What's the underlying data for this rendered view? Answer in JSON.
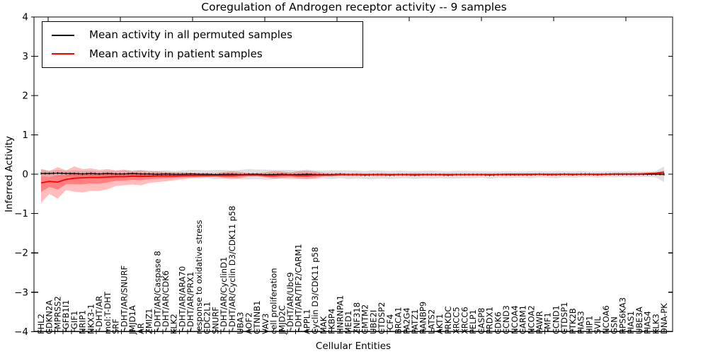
{
  "chart_data": {
    "type": "line",
    "title": "Coregulation of Androgen receptor activity -- 9 samples",
    "xlabel": "Cellular Entities",
    "ylabel": "Inferred Activity",
    "ylim": [
      -4,
      4
    ],
    "y_ticks": [
      4,
      3,
      2,
      1,
      0,
      -1,
      -2,
      -3,
      -4
    ],
    "y_tick_labels": [
      "4",
      "3",
      "2",
      "1",
      "0",
      "-1",
      "-2",
      "-3",
      "-4"
    ],
    "grid": false,
    "legend_position": "upper left",
    "categories": [
      "FHL2",
      "CDKN2A",
      "TMPRSS2",
      "TGFB1I1",
      "TGIF1",
      "NRIP1",
      "NKX3-1",
      "T-DHT/AR",
      "mol:T-DHT",
      "SRF",
      "T-DHT/AR/SNURF",
      "JMJD1A",
      "AR",
      "ZMIZ1",
      "T-DHT/AR/Caspase 8",
      "T-DHT/AR/CDK6",
      "KLK2",
      "T-DHT/AR/ARA70",
      "T-DHT/AR/PRX1",
      "response to oxidative stress",
      "CDC2L1",
      "SNURF",
      "T-DHT/AR/CyclinD1",
      "T-DHT/AR/Cyclin D3/CDK11 p58",
      "UBA3",
      "AOF2",
      "CTNNB1",
      "VAV3",
      "cell proliferation",
      "JMJD2C",
      "T-DHT/AR/Ubc9",
      "T-DHT/AR/TIF2/CARM1",
      "APPL1",
      "Cyclin D3/CDK11 p58",
      "MAK",
      "FKBP4",
      "HNRNPA1",
      "MED1",
      "ZNF318",
      "CMTM2",
      "UBE2I",
      "CTDSP2",
      "TCF4",
      "BRCA1",
      "PA2G4",
      "PATZ1",
      "RANBP9",
      "LATS2",
      "AKT1",
      "PRKDC",
      "XRCC5",
      "XRCC6",
      "PELP1",
      "CASP8",
      "PRDX1",
      "CDK6",
      "CCND3",
      "NCOA4",
      "CARM1",
      "NCOA2",
      "PAWR",
      "TMF1",
      "CCND1",
      "CTDSP1",
      "PTK2B",
      "PIAS3",
      "HIP1",
      "SVIL",
      "NCOA6",
      "GSN",
      "RPS6KA3",
      "PIAS1",
      "UBE3A",
      "PIAS4",
      "KLK3",
      "DNA-PK"
    ],
    "series": [
      {
        "name": "Mean activity in all permuted samples",
        "color": "#000000",
        "values": [
          0.02,
          0.02,
          0.03,
          0.02,
          0.02,
          0.01,
          0.02,
          0.01,
          0.02,
          0.01,
          0.01,
          0.02,
          0.01,
          0.01,
          0.0,
          0.01,
          0.0,
          0.0,
          0.01,
          0.0,
          0.0,
          -0.01,
          0.0,
          0.0,
          -0.01,
          0.0,
          0.0,
          -0.01,
          -0.01,
          0.0,
          -0.01,
          -0.01,
          0.0,
          -0.01,
          -0.01,
          -0.01,
          0.0,
          -0.01,
          -0.01,
          -0.02,
          -0.01,
          -0.01,
          -0.02,
          -0.01,
          -0.01,
          -0.02,
          -0.01,
          -0.01,
          -0.01,
          -0.02,
          -0.01,
          -0.01,
          -0.01,
          -0.01,
          -0.02,
          -0.01,
          -0.01,
          -0.01,
          -0.01,
          -0.01,
          0.0,
          -0.01,
          -0.01,
          0.0,
          -0.01,
          0.0,
          0.0,
          -0.01,
          0.0,
          0.0,
          0.0,
          0.0,
          0.0,
          0.0,
          0.0,
          0.0
        ]
      },
      {
        "name": "Mean activity in patient samples",
        "color": "#ff0000",
        "values": [
          -0.22,
          -0.18,
          -0.2,
          -0.13,
          -0.1,
          -0.09,
          -0.08,
          -0.08,
          -0.07,
          -0.06,
          -0.06,
          -0.05,
          -0.05,
          -0.05,
          -0.04,
          -0.04,
          -0.04,
          -0.03,
          -0.03,
          -0.03,
          -0.03,
          -0.03,
          -0.03,
          -0.03,
          -0.02,
          -0.02,
          -0.02,
          -0.03,
          -0.03,
          -0.02,
          -0.02,
          -0.03,
          -0.03,
          -0.02,
          -0.02,
          -0.02,
          -0.01,
          -0.01,
          -0.01,
          -0.01,
          -0.01,
          -0.01,
          -0.01,
          -0.01,
          -0.01,
          -0.01,
          -0.01,
          -0.01,
          -0.01,
          -0.01,
          -0.01,
          -0.01,
          -0.01,
          -0.01,
          -0.01,
          -0.01,
          0.0,
          0.0,
          0.0,
          0.0,
          0.0,
          0.0,
          0.0,
          0.0,
          0.0,
          0.0,
          0.0,
          0.0,
          0.0,
          0.01,
          0.01,
          0.01,
          0.01,
          0.02,
          0.03,
          0.05
        ]
      }
    ],
    "bands": [
      {
        "name": "permuted-samples-range",
        "color": "rgba(0,0,0,0.12)",
        "center_series": 0,
        "halfwidth": [
          0.09,
          0.07,
          0.08,
          0.07,
          0.08,
          0.07,
          0.07,
          0.06,
          0.07,
          0.07,
          0.09,
          0.08,
          0.1,
          0.09,
          0.08,
          0.09,
          0.08,
          0.09,
          0.1,
          0.11,
          0.1,
          0.12,
          0.11,
          0.1,
          0.12,
          0.13,
          0.12,
          0.13,
          0.12,
          0.11,
          0.12,
          0.11,
          0.12,
          0.11,
          0.1,
          0.11,
          0.1,
          0.11,
          0.1,
          0.1,
          0.11,
          0.1,
          0.1,
          0.1,
          0.09,
          0.1,
          0.09,
          0.1,
          0.09,
          0.09,
          0.1,
          0.09,
          0.09,
          0.08,
          0.09,
          0.08,
          0.09,
          0.08,
          0.08,
          0.09,
          0.08,
          0.08,
          0.09,
          0.08,
          0.08,
          0.08,
          0.07,
          0.08,
          0.07,
          0.08,
          0.07,
          0.08,
          0.07,
          0.07,
          0.08,
          0.2
        ]
      },
      {
        "name": "patient-samples-range-outer",
        "color": "rgba(255,0,0,0.26)",
        "upper": [
          0.14,
          0.08,
          0.18,
          0.1,
          0.2,
          0.13,
          0.15,
          0.11,
          0.13,
          0.1,
          0.12,
          0.08,
          0.1,
          0.07,
          0.08,
          0.06,
          0.05,
          0.05,
          0.04,
          0.03,
          0.03,
          0.03,
          0.06,
          0.08,
          0.06,
          0.03,
          0.03,
          0.05,
          0.08,
          0.07,
          0.05,
          0.08,
          0.09,
          0.07,
          0.04,
          0.03,
          0.03,
          0.02,
          0.03,
          0.02,
          0.02,
          0.03,
          0.02,
          0.02,
          0.02,
          0.03,
          0.02,
          0.02,
          0.02,
          0.02,
          0.02,
          0.02,
          0.02,
          0.02,
          0.02,
          0.02,
          0.02,
          0.02,
          0.02,
          0.02,
          0.02,
          0.02,
          0.02,
          0.02,
          0.02,
          0.02,
          0.02,
          0.02,
          0.02,
          0.02,
          0.02,
          0.02,
          0.03,
          0.03,
          0.04,
          0.1
        ],
        "lower": [
          -0.73,
          -0.5,
          -0.62,
          -0.4,
          -0.44,
          -0.46,
          -0.42,
          -0.42,
          -0.38,
          -0.3,
          -0.28,
          -0.26,
          -0.28,
          -0.22,
          -0.2,
          -0.18,
          -0.15,
          -0.13,
          -0.1,
          -0.08,
          -0.07,
          -0.06,
          -0.1,
          -0.12,
          -0.1,
          -0.06,
          -0.05,
          -0.08,
          -0.11,
          -0.1,
          -0.08,
          -0.11,
          -0.12,
          -0.1,
          -0.06,
          -0.05,
          -0.04,
          -0.04,
          -0.04,
          -0.03,
          -0.04,
          -0.04,
          -0.03,
          -0.03,
          -0.03,
          -0.04,
          -0.03,
          -0.03,
          -0.03,
          -0.03,
          -0.02,
          -0.03,
          -0.02,
          -0.02,
          -0.03,
          -0.02,
          -0.02,
          -0.02,
          -0.02,
          -0.02,
          -0.02,
          -0.02,
          -0.02,
          -0.02,
          -0.02,
          -0.02,
          -0.02,
          -0.02,
          -0.02,
          -0.02,
          -0.02,
          -0.02,
          -0.01,
          -0.01,
          -0.01,
          -0.04
        ]
      },
      {
        "name": "patient-samples-range-inner",
        "color": "rgba(255,0,0,0.32)",
        "derived_from": "patient-samples-range-outer",
        "fraction_of_outer": 0.45
      }
    ]
  }
}
